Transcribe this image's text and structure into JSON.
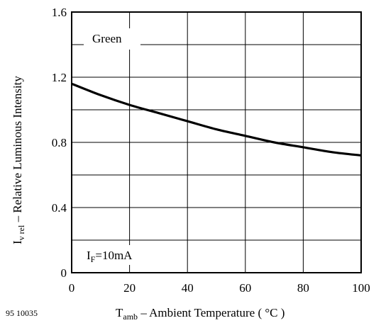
{
  "chart_data": {
    "type": "line",
    "xlabel_main": "T",
    "xlabel_sub": "amb",
    "xlabel_rest": " – Ambient Temperature ( °C )",
    "ylabel_main": "I",
    "ylabel_sub": "v rel",
    "ylabel_rest": "  – Relative Luminous Intensity",
    "xlim": [
      0,
      100
    ],
    "ylim": [
      0,
      1.6
    ],
    "x_ticks": [
      "0",
      "20",
      "40",
      "60",
      "80",
      "100"
    ],
    "y_ticks": [
      "0",
      "0.4",
      "0.8",
      "1.2",
      "1.6"
    ],
    "grid": true,
    "series": [
      {
        "name": "Green",
        "x": [
          0,
          10,
          20,
          30,
          40,
          50,
          60,
          70,
          80,
          90,
          100
        ],
        "values": [
          1.16,
          1.09,
          1.03,
          0.98,
          0.93,
          0.88,
          0.84,
          0.8,
          0.77,
          0.74,
          0.72
        ]
      }
    ],
    "condition_main": "I",
    "condition_sub": "F",
    "condition_rest": "=10mA",
    "figure_id": "95 10035"
  }
}
